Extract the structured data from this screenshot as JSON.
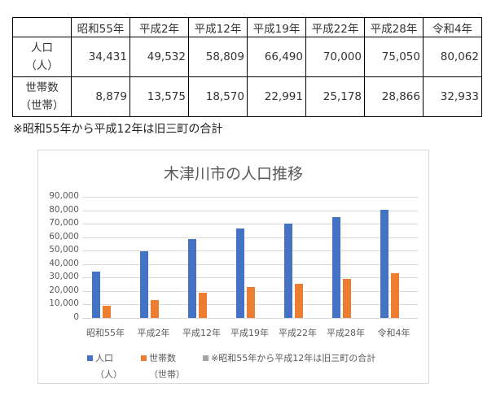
{
  "table": {
    "headers": [
      "",
      "昭和55年",
      "平成2年",
      "平成12年",
      "平成19年",
      "平成22年",
      "平成28年",
      "令和4年"
    ],
    "rows": [
      {
        "label_line1": "人口",
        "label_line2": "（人）",
        "values": [
          "34,431",
          "49,532",
          "58,809",
          "66,490",
          "70,000",
          "75,050",
          "80,062"
        ]
      },
      {
        "label_line1": "世帯数",
        "label_line2": "（世帯）",
        "values": [
          "8,879",
          "13,575",
          "18,570",
          "22,991",
          "25,178",
          "28,866",
          "32,933"
        ]
      }
    ]
  },
  "note": "※昭和55年から平成12年は旧三町の合計",
  "colors": {
    "population": "#4472c4",
    "households": "#ed7d31",
    "note_series": "#a5a5a5",
    "grid": "#d9d9d9",
    "text": "#595959"
  },
  "chart_data": {
    "type": "bar",
    "title": "木津川市の人口推移",
    "categories": [
      "昭和55年",
      "平成2年",
      "平成12年",
      "平成19年",
      "平成22年",
      "平成28年",
      "令和4年"
    ],
    "series": [
      {
        "name": "人口（人）",
        "values": [
          34431,
          49532,
          58809,
          66490,
          70000,
          75050,
          80062
        ]
      },
      {
        "name": "世帯数（世帯）",
        "values": [
          8879,
          13575,
          18570,
          22991,
          25178,
          28866,
          32933
        ]
      },
      {
        "name": "※昭和55年から平成12年は旧三町の合計",
        "values": []
      }
    ],
    "yticks": [
      "0",
      "10,000",
      "20,000",
      "30,000",
      "40,000",
      "50,000",
      "60,000",
      "70,000",
      "80,000",
      "90,000"
    ],
    "ylim": [
      0,
      90000
    ],
    "xlabel": "",
    "ylabel": "",
    "grid": true,
    "legend_position": "bottom",
    "legend": [
      {
        "line1": "人口",
        "line2": "（人）"
      },
      {
        "line1": "世帯数",
        "line2": "（世帯）"
      },
      {
        "line1": "※昭和55年から平成12年は旧三町の合計",
        "line2": ""
      }
    ]
  }
}
